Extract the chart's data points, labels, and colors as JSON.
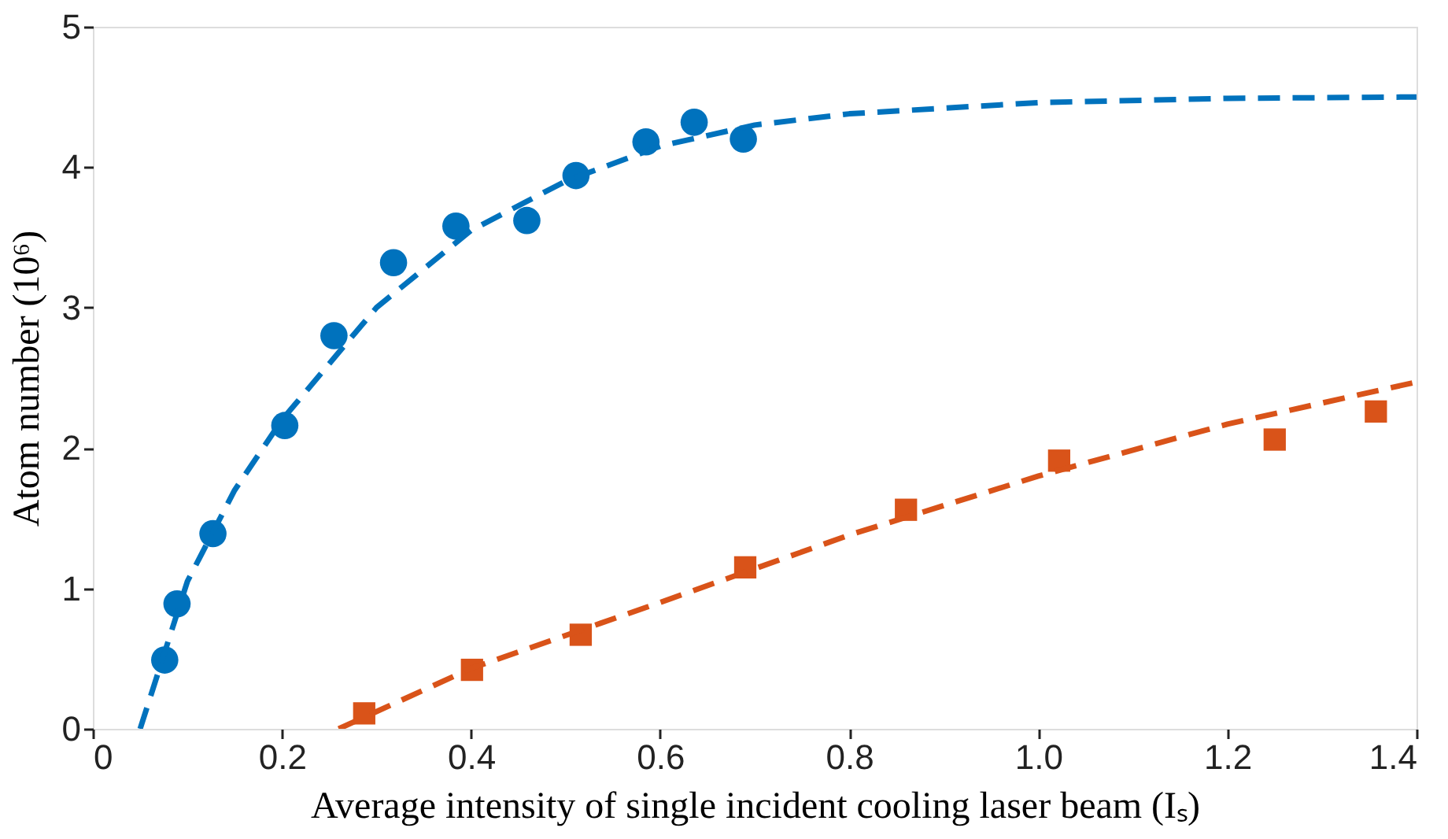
{
  "chart_data": {
    "type": "scatter",
    "xlabel": "Average intensity of single incident cooling laser beam (Iₛ)",
    "ylabel": "Atom number (10⁶)",
    "xlim": [
      0,
      1.4
    ],
    "ylim": [
      0,
      5
    ],
    "xticks": [
      0,
      0.2,
      0.4,
      0.6,
      0.8,
      {
        "value": 1,
        "label": "1.0"
      },
      1.2,
      1.4
    ],
    "yticks": [
      0,
      1,
      2,
      3,
      4,
      5
    ],
    "series": [
      {
        "marker": "circle",
        "color": "#0072bd",
        "x": [
          0.076,
          0.089,
          0.127,
          0.203,
          0.255,
          0.318,
          0.384,
          0.459,
          0.511,
          0.585,
          0.636,
          0.688
        ],
        "values": [
          0.49,
          0.89,
          1.39,
          2.16,
          2.8,
          3.32,
          3.58,
          3.62,
          3.94,
          4.18,
          4.32,
          4.2
        ]
      },
      {
        "marker": "square",
        "color": "#d95319",
        "x": [
          0.287,
          0.401,
          0.516,
          0.69,
          0.86,
          1.022,
          1.25,
          1.357
        ],
        "values": [
          0.11,
          0.42,
          0.67,
          1.15,
          1.56,
          1.91,
          2.06,
          2.26
        ]
      },
      {
        "type": "line",
        "line_style": "dashed",
        "color": "#0072bd",
        "x": [
          0.05,
          0.1,
          0.15,
          0.2,
          0.3,
          0.4,
          0.5,
          0.6,
          0.7,
          0.8,
          1.0,
          1.2,
          1.4
        ],
        "values": [
          0,
          1.05,
          1.7,
          2.2,
          3.0,
          3.55,
          3.9,
          4.15,
          4.3,
          4.38,
          4.46,
          4.49,
          4.5
        ]
      },
      {
        "type": "line",
        "line_style": "dashed",
        "color": "#d95319",
        "x": [
          0.26,
          0.4,
          0.6,
          0.8,
          1.0,
          1.2,
          1.4
        ],
        "values": [
          0,
          0.43,
          0.9,
          1.38,
          1.8,
          2.17,
          2.47
        ]
      }
    ]
  }
}
